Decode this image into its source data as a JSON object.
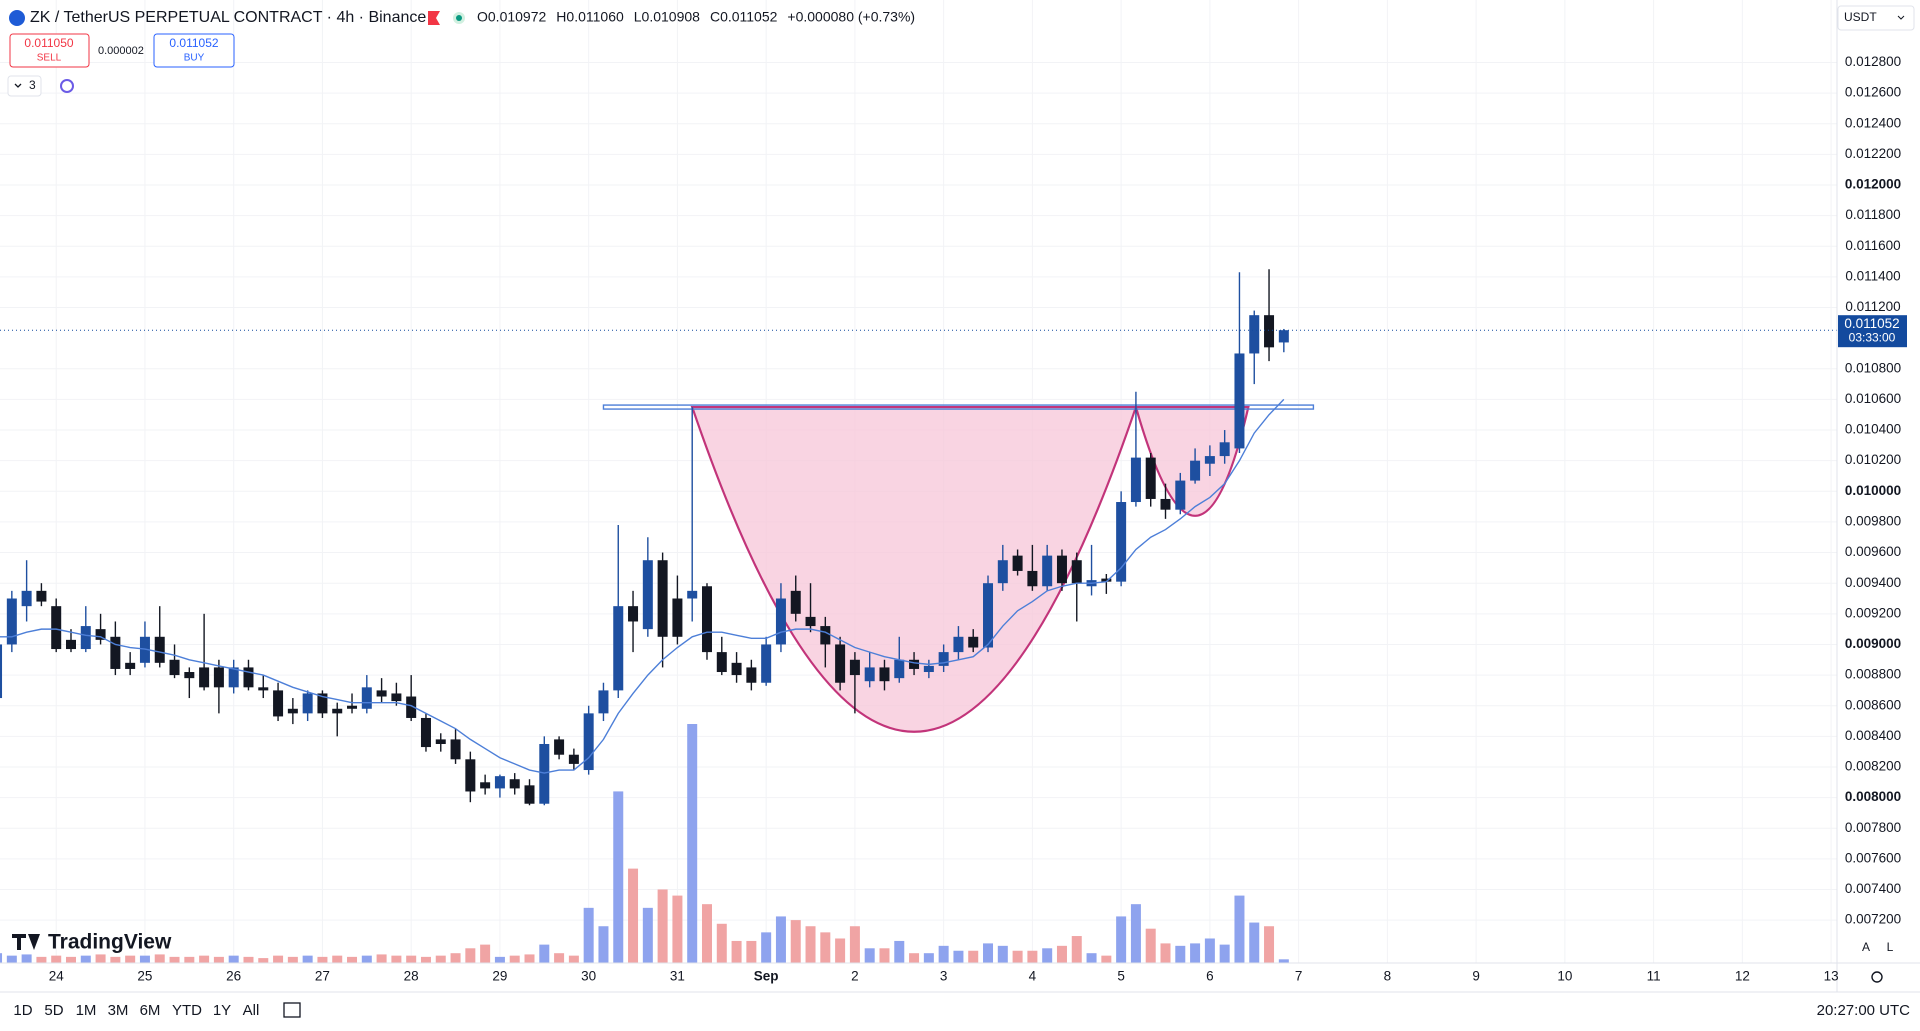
{
  "header": {
    "symbol": "ZK / TetherUS PERPETUAL CONTRACT · 4h · Binance",
    "ohlc": [
      "O0.010972",
      "H0.011060",
      "L0.010908",
      "C0.011052",
      "+0.000080 (+0.73%)"
    ],
    "sell": {
      "price": "0.011050",
      "label": "SELL"
    },
    "spread": "0.000002",
    "buy": {
      "price": "0.011052",
      "label": "BUY"
    },
    "indicators": "3",
    "currency": "USDT"
  },
  "chart_data": {
    "type": "candlestick",
    "open": [
      0.00865,
      0.009,
      0.00925,
      0.00935,
      0.00925,
      0.00903,
      0.00897,
      0.0091,
      0.00905,
      0.00888,
      0.00888,
      0.00905,
      0.0089,
      0.00882,
      0.00885,
      0.00885,
      0.00872,
      0.00885,
      0.00872,
      0.0087,
      0.00858,
      0.00855,
      0.00868,
      0.00858,
      0.0086,
      0.00858,
      0.0087,
      0.00868,
      0.00866,
      0.00852,
      0.00838,
      0.00838,
      0.00825,
      0.0081,
      0.00806,
      0.00812,
      0.00808,
      0.00796,
      0.00838,
      0.00828,
      0.00818,
      0.00855,
      0.0087,
      0.00925,
      0.0091,
      0.00955,
      0.0093,
      0.0093,
      0.00938,
      0.00895,
      0.00888,
      0.00885,
      0.00875,
      0.009,
      0.00935,
      0.00918,
      0.00912,
      0.009,
      0.0089,
      0.00876,
      0.00885,
      0.00878,
      0.0089,
      0.00882,
      0.00886,
      0.00895,
      0.00905,
      0.00898,
      0.0094,
      0.00958,
      0.00948,
      0.00938,
      0.00958,
      0.00955,
      0.00938,
      0.00943,
      0.00941,
      0.00993,
      0.01022,
      0.00995,
      0.00988,
      0.01007,
      0.01018,
      0.01023,
      0.01028,
      0.0109,
      0.01115,
      0.010972
    ],
    "high": [
      0.00905,
      0.00935,
      0.00955,
      0.0094,
      0.0093,
      0.0091,
      0.00925,
      0.0092,
      0.00915,
      0.00895,
      0.00915,
      0.00925,
      0.009,
      0.00885,
      0.0092,
      0.0089,
      0.0089,
      0.0089,
      0.0088,
      0.00875,
      0.00865,
      0.0087,
      0.0087,
      0.00862,
      0.00868,
      0.0088,
      0.00878,
      0.00875,
      0.0088,
      0.00855,
      0.00842,
      0.00845,
      0.0083,
      0.00815,
      0.00815,
      0.00816,
      0.00812,
      0.0084,
      0.0084,
      0.00832,
      0.0086,
      0.00875,
      0.00978,
      0.00935,
      0.0097,
      0.0096,
      0.00945,
      0.01055,
      0.0094,
      0.00905,
      0.00895,
      0.0089,
      0.00905,
      0.0094,
      0.00945,
      0.0094,
      0.00918,
      0.00905,
      0.00895,
      0.00895,
      0.0089,
      0.00905,
      0.00895,
      0.0089,
      0.009,
      0.00912,
      0.0091,
      0.00945,
      0.00965,
      0.00962,
      0.00965,
      0.00965,
      0.00962,
      0.0096,
      0.00965,
      0.00946,
      0.01,
      0.01065,
      0.01025,
      0.01005,
      0.01012,
      0.01028,
      0.0103,
      0.0104,
      0.01143,
      0.01118,
      0.01145,
      0.01106
    ],
    "low": [
      0.0086,
      0.00895,
      0.00915,
      0.00925,
      0.00895,
      0.00895,
      0.00895,
      0.009,
      0.0088,
      0.0088,
      0.00885,
      0.00885,
      0.00878,
      0.00865,
      0.0087,
      0.00855,
      0.00868,
      0.0087,
      0.00865,
      0.0085,
      0.00848,
      0.0085,
      0.00852,
      0.0084,
      0.00855,
      0.00855,
      0.00862,
      0.0086,
      0.0085,
      0.0083,
      0.0083,
      0.00822,
      0.00797,
      0.00802,
      0.008,
      0.00802,
      0.00795,
      0.00795,
      0.00825,
      0.00818,
      0.00815,
      0.0085,
      0.00865,
      0.00895,
      0.00905,
      0.00885,
      0.009,
      0.00915,
      0.0089,
      0.0088,
      0.00875,
      0.0087,
      0.00873,
      0.00895,
      0.00915,
      0.00908,
      0.00885,
      0.0087,
      0.00855,
      0.00872,
      0.0087,
      0.00875,
      0.0088,
      0.00878,
      0.00882,
      0.0089,
      0.00895,
      0.00895,
      0.00935,
      0.00945,
      0.00935,
      0.00935,
      0.00935,
      0.00915,
      0.00932,
      0.00933,
      0.00938,
      0.0099,
      0.0099,
      0.00982,
      0.00985,
      0.01005,
      0.0101,
      0.01018,
      0.01025,
      0.0107,
      0.01085,
      0.010908
    ],
    "close": [
      0.009,
      0.0093,
      0.00935,
      0.00928,
      0.00897,
      0.00897,
      0.00912,
      0.00903,
      0.00884,
      0.00884,
      0.00905,
      0.00888,
      0.0088,
      0.00878,
      0.00872,
      0.00872,
      0.00885,
      0.00872,
      0.0087,
      0.00853,
      0.00855,
      0.00868,
      0.00855,
      0.00855,
      0.00858,
      0.00872,
      0.00866,
      0.00863,
      0.00852,
      0.00833,
      0.00835,
      0.00825,
      0.00804,
      0.00806,
      0.00814,
      0.00806,
      0.00796,
      0.00835,
      0.00828,
      0.00822,
      0.00855,
      0.0087,
      0.00925,
      0.00915,
      0.00955,
      0.00905,
      0.00905,
      0.00935,
      0.00895,
      0.00882,
      0.0088,
      0.00875,
      0.009,
      0.0093,
      0.0092,
      0.00912,
      0.009,
      0.00875,
      0.0088,
      0.00885,
      0.00876,
      0.0089,
      0.00884,
      0.00886,
      0.00895,
      0.00905,
      0.00898,
      0.0094,
      0.00955,
      0.00948,
      0.00938,
      0.00958,
      0.0094,
      0.0094,
      0.00942,
      0.00941,
      0.00993,
      0.01022,
      0.00995,
      0.00988,
      0.01007,
      0.0102,
      0.01023,
      0.01032,
      0.0109,
      0.01115,
      0.01094,
      0.011052
    ],
    "volume": [
      8,
      6,
      7,
      5,
      6,
      5,
      6,
      7,
      5,
      6,
      6,
      7,
      5,
      5,
      6,
      5,
      6,
      5,
      4,
      6,
      5,
      6,
      5,
      6,
      5,
      6,
      7,
      6,
      6,
      5,
      6,
      8,
      12,
      15,
      5,
      6,
      7,
      15,
      8,
      6,
      45,
      30,
      140,
      77,
      45,
      60,
      55,
      195,
      48,
      32,
      18,
      18,
      25,
      38,
      35,
      30,
      25,
      20,
      30,
      12,
      12,
      18,
      8,
      8,
      14,
      10,
      10,
      16,
      14,
      10,
      10,
      12,
      14,
      22,
      8,
      6,
      38,
      48,
      28,
      16,
      14,
      16,
      20,
      15,
      55,
      33,
      30,
      3
    ],
    "ma": [
      0.00905,
      0.00905,
      0.00908,
      0.0091,
      0.0091,
      0.00908,
      0.00906,
      0.00905,
      0.009,
      0.00898,
      0.00897,
      0.00895,
      0.00893,
      0.0089,
      0.00888,
      0.00886,
      0.00884,
      0.00882,
      0.0088,
      0.00876,
      0.00872,
      0.00869,
      0.00866,
      0.00864,
      0.00862,
      0.00862,
      0.00862,
      0.00862,
      0.0086,
      0.00855,
      0.0085,
      0.00845,
      0.00838,
      0.00832,
      0.00826,
      0.00822,
      0.00818,
      0.00816,
      0.00818,
      0.00818,
      0.00826,
      0.00838,
      0.00855,
      0.00868,
      0.0088,
      0.0089,
      0.00898,
      0.00905,
      0.00908,
      0.00908,
      0.00906,
      0.00904,
      0.00904,
      0.00908,
      0.0091,
      0.0091,
      0.00908,
      0.00903,
      0.00898,
      0.00895,
      0.00892,
      0.0089,
      0.00888,
      0.00887,
      0.00888,
      0.0089,
      0.00892,
      0.009,
      0.00912,
      0.00922,
      0.00928,
      0.00935,
      0.00938,
      0.0094,
      0.0094,
      0.00941,
      0.0095,
      0.00962,
      0.0097,
      0.00975,
      0.00982,
      0.0099,
      0.00996,
      0.01005,
      0.0102,
      0.01038,
      0.0105,
      0.0106
    ],
    "up_color": "#1e4fa0",
    "down_color": "#131722",
    "volume_up_color": "#8ea3ee",
    "volume_down_color": "#f0a4a4",
    "ma_color": "#4d7fd8",
    "cup_handle": {
      "x": [
        47,
        62,
        77,
        81,
        84.6
      ],
      "y": [
        0.01055,
        0.00843,
        0.01055,
        0.00984,
        0.01055
      ],
      "fill": "#f7c6d8",
      "color": "#c2347a"
    },
    "resistance": {
      "value": 0.01055,
      "x": [
        41,
        89
      ],
      "color": "#4d7fd8"
    },
    "last_price": 0.011052,
    "countdown": "03:33:00",
    "last_color": "#134a9e",
    "xlim": [
      0.2,
      124.4
    ],
    "ylim": [
      0.00692,
      0.013208
    ],
    "xticks": [
      {
        "value": 4,
        "label": "24"
      },
      {
        "value": 10,
        "label": "25"
      },
      {
        "value": 16,
        "label": "26"
      },
      {
        "value": 22,
        "label": "27"
      },
      {
        "value": 28,
        "label": "28"
      },
      {
        "value": 34,
        "label": "29"
      },
      {
        "value": 40,
        "label": "30"
      },
      {
        "value": 46,
        "label": "31"
      },
      {
        "value": 52,
        "label": "Sep"
      },
      {
        "value": 58,
        "label": "2"
      },
      {
        "value": 64,
        "label": "3"
      },
      {
        "value": 70,
        "label": "4"
      },
      {
        "value": 76,
        "label": "5"
      },
      {
        "value": 82,
        "label": "6"
      },
      {
        "value": 88,
        "label": "7"
      },
      {
        "value": 94,
        "label": "8"
      },
      {
        "value": 100,
        "label": "9"
      },
      {
        "value": 106,
        "label": "10"
      },
      {
        "value": 112,
        "label": "11"
      },
      {
        "value": 118,
        "label": "12"
      },
      {
        "value": 124,
        "label": "13"
      }
    ],
    "yticks": [
      {
        "value": 0.0072,
        "label": "0.007200"
      },
      {
        "value": 0.0074,
        "label": "0.007400"
      },
      {
        "value": 0.0076,
        "label": "0.007600"
      },
      {
        "value": 0.0078,
        "label": "0.007800"
      },
      {
        "value": 0.008,
        "label": "0.008000"
      },
      {
        "value": 0.0082,
        "label": "0.008200"
      },
      {
        "value": 0.0084,
        "label": "0.008400"
      },
      {
        "value": 0.0086,
        "label": "0.008600"
      },
      {
        "value": 0.0088,
        "label": "0.008800"
      },
      {
        "value": 0.009,
        "label": "0.009000"
      },
      {
        "value": 0.0092,
        "label": "0.009200"
      },
      {
        "value": 0.0094,
        "label": "0.009400"
      },
      {
        "value": 0.0096,
        "label": "0.009600"
      },
      {
        "value": 0.0098,
        "label": "0.009800"
      },
      {
        "value": 0.01,
        "label": "0.010000"
      },
      {
        "value": 0.0102,
        "label": "0.010200"
      },
      {
        "value": 0.0104,
        "label": "0.010400"
      },
      {
        "value": 0.0106,
        "label": "0.010600"
      },
      {
        "value": 0.0108,
        "label": "0.010800"
      },
      {
        "value": 0.0112,
        "label": "0.011200"
      },
      {
        "value": 0.0114,
        "label": "0.011400"
      },
      {
        "value": 0.0116,
        "label": "0.011600"
      },
      {
        "value": 0.0118,
        "label": "0.011800"
      },
      {
        "value": 0.012,
        "label": "0.012000"
      },
      {
        "value": 0.0122,
        "label": "0.012200"
      },
      {
        "value": 0.0124,
        "label": "0.012400"
      },
      {
        "value": 0.0126,
        "label": "0.012600"
      },
      {
        "value": 0.0128,
        "label": "0.012800"
      }
    ],
    "grid": true,
    "watermark": "TradingView"
  },
  "footer": {
    "ranges": [
      "1D",
      "5D",
      "1M",
      "3M",
      "6M",
      "YTD",
      "1Y",
      "All"
    ],
    "time": "20:27:00 UTC",
    "scale_buttons": [
      "A",
      "L"
    ]
  }
}
